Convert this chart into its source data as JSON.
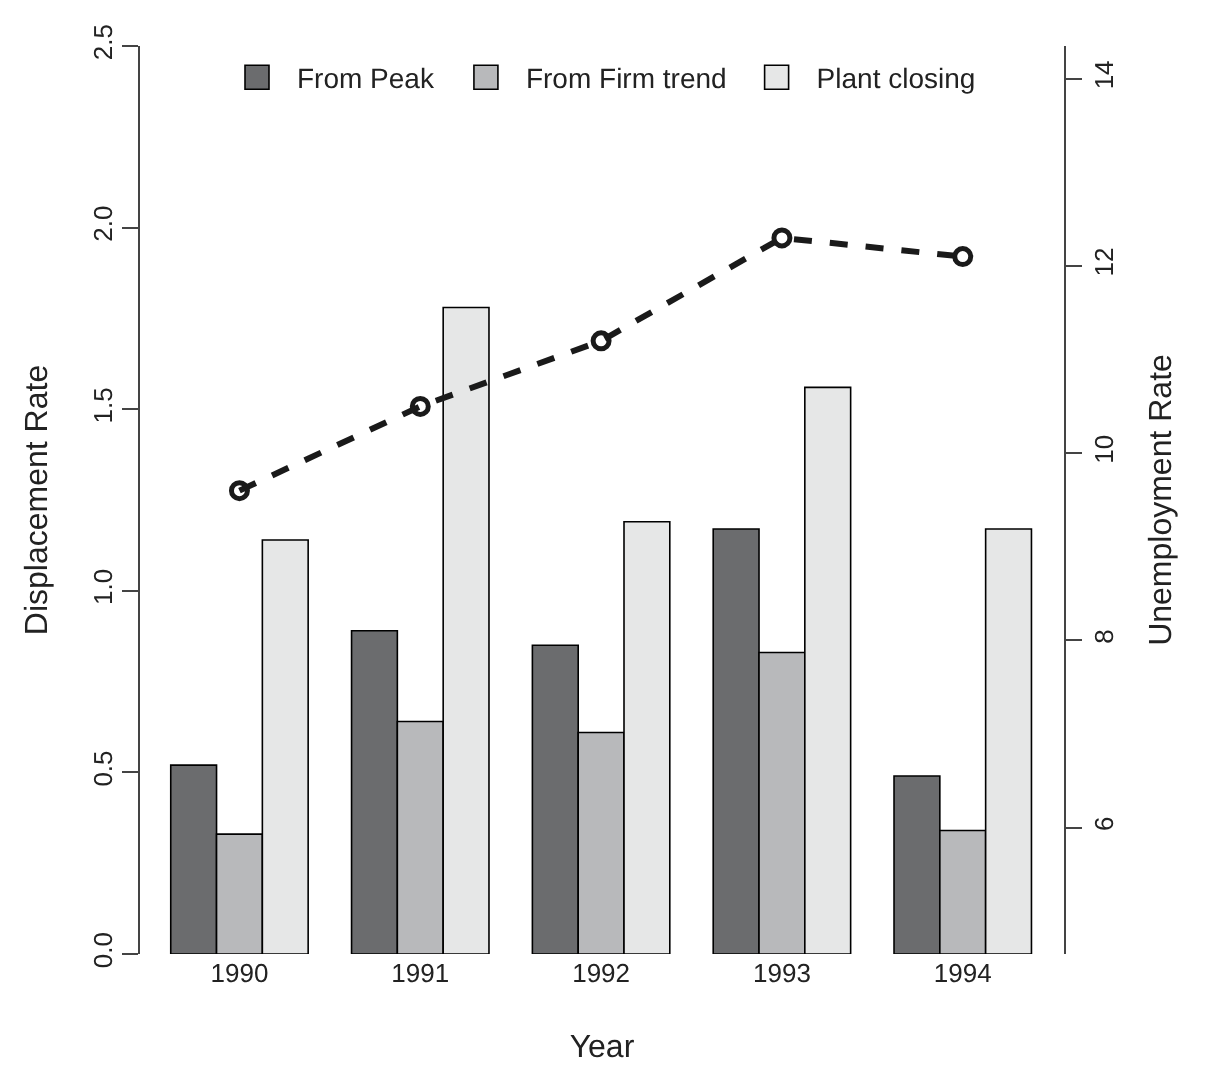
{
  "chart_data": {
    "type": "bar",
    "xlabel": "Year",
    "ylabel": "Displacement Rate",
    "y2label": "Unemployment Rate",
    "categories": [
      "1990",
      "1991",
      "1992",
      "1993",
      "1994"
    ],
    "series": [
      {
        "name": "From Peak",
        "color": "#6b6c6e",
        "values": [
          0.52,
          0.89,
          0.85,
          1.17,
          0.49
        ]
      },
      {
        "name": "From Firm trend",
        "color": "#b8b9bb",
        "values": [
          0.33,
          0.64,
          0.61,
          0.83,
          0.34
        ]
      },
      {
        "name": "Plant closing",
        "color": "#e6e7e7",
        "values": [
          1.14,
          1.78,
          1.19,
          1.56,
          1.17
        ]
      },
      {
        "type": "line",
        "axis": "y2",
        "color": "#1a1a1a",
        "values": [
          9.6,
          10.5,
          11.2,
          12.3,
          12.1
        ],
        "marker": "circle",
        "line_style": "dashed"
      }
    ],
    "ylim": [
      0,
      2.5
    ],
    "yticks": [
      {
        "value": 0,
        "label": "0.0"
      },
      0.5,
      {
        "value": 1,
        "label": "1.0"
      },
      1.5,
      {
        "value": 2,
        "label": "2.0"
      },
      2.5
    ],
    "y2lim": [
      4.65,
      14.35
    ],
    "y2ticks": [
      6,
      8,
      10,
      12,
      14
    ],
    "legend": "top"
  }
}
